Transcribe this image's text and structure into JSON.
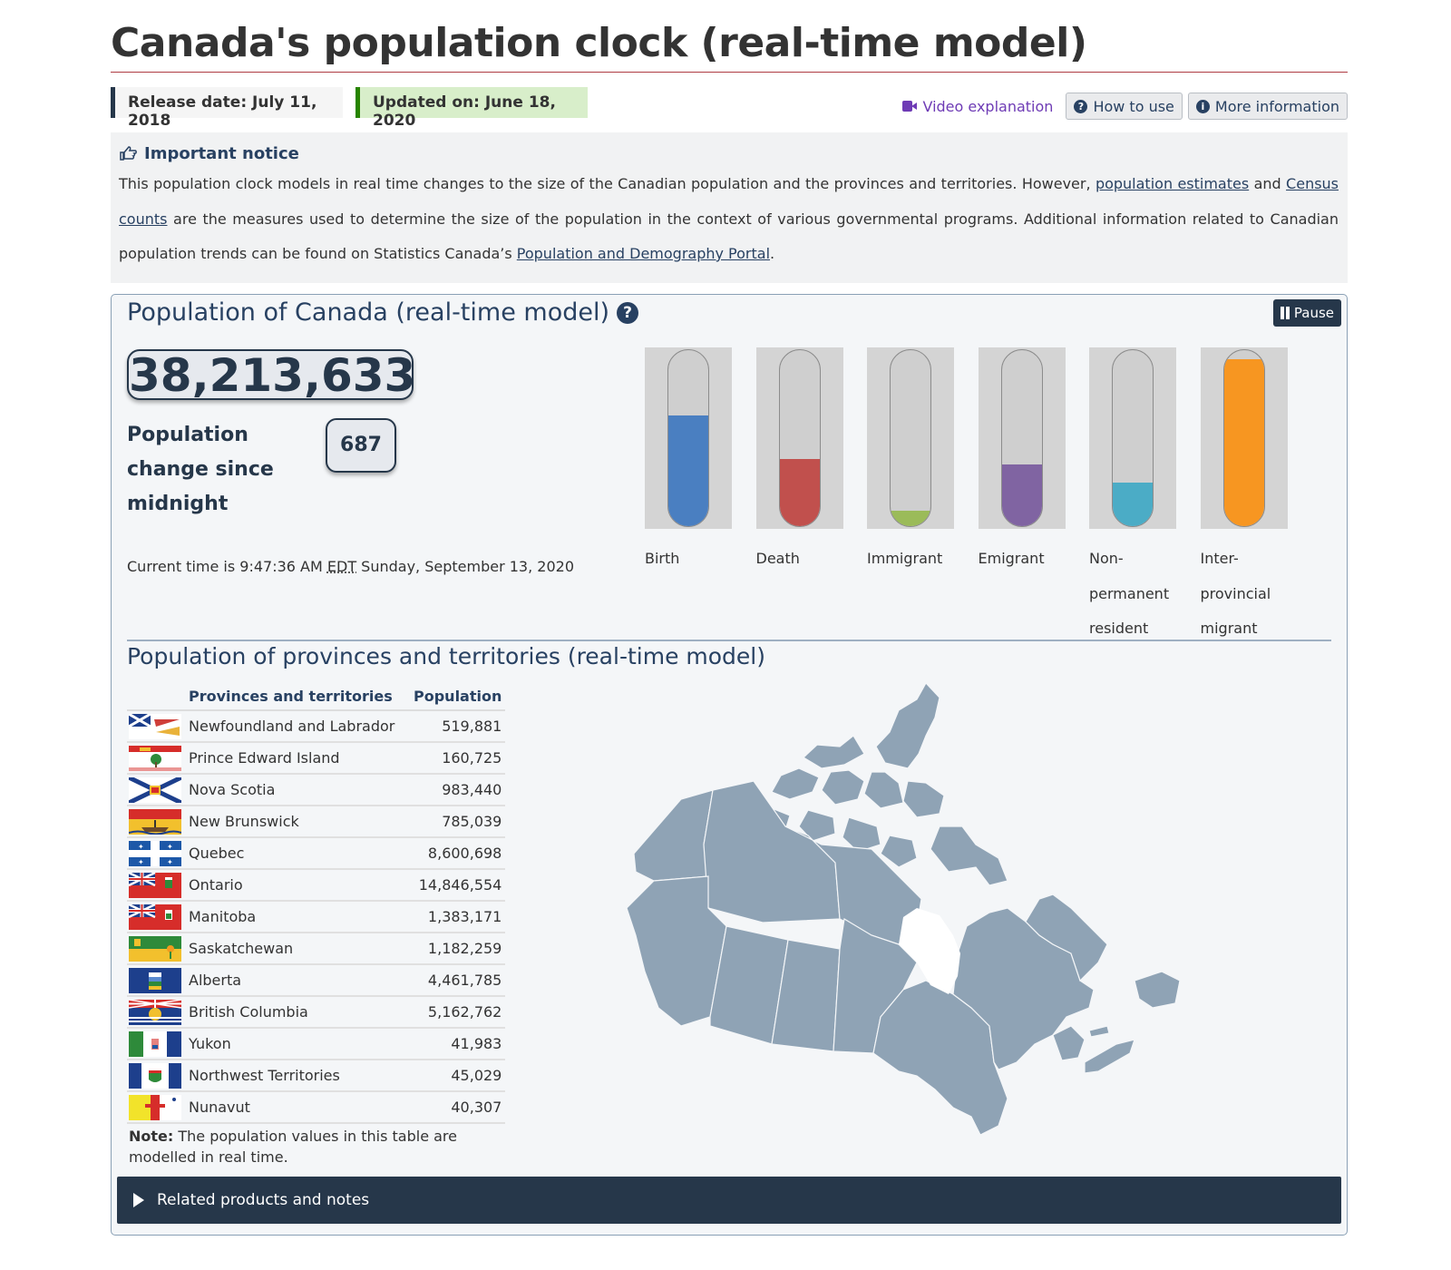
{
  "page": {
    "title": "Canada's population clock (real-time model)",
    "release_date": "Release date: July 11, 2018",
    "updated_on": "Updated on: June 18, 2020"
  },
  "tools": {
    "video_label": "Video explanation",
    "how_label": "How to use",
    "more_label": "More information"
  },
  "notice": {
    "title": "Important notice",
    "text_1": "This population clock models in real time changes to the size of the Canadian population and the provinces and territories. However, ",
    "link_1": "population estimates",
    "text_2": " and ",
    "link_2": "Census counts",
    "text_3": " are the measures used to determine the size of the population in the context of various governmental programs. Additional information related to Canadian population trends can be found on Statistics Canada’s ",
    "link_3": "Population and Demography Portal",
    "text_4": "."
  },
  "clock": {
    "title": "Population of Canada (real-time model)",
    "help_icon": "question-circle-icon",
    "pause_label": "Pause",
    "population": "38,213,633",
    "change_label": "Population change since midnight",
    "change_value": "687",
    "time_prefix": "Current time is 9:47:36 AM ",
    "time_zone": "EDT",
    "time_suffix": " Sunday, September 13, 2020"
  },
  "gauges": [
    {
      "label": "Birth",
      "level": 0.63,
      "color": "#4a7fc1"
    },
    {
      "label": "Death",
      "level": 0.38,
      "color": "#c1504d"
    },
    {
      "label": "Immigrant",
      "level": 0.09,
      "color": "#9bbb59"
    },
    {
      "label": "Emigrant",
      "level": 0.35,
      "color": "#8064a2"
    },
    {
      "label": "Non-permanent resident",
      "level": 0.25,
      "color": "#4bacc6"
    },
    {
      "label": "Inter-provincial migrant",
      "level": 0.95,
      "color": "#f79621"
    }
  ],
  "provinces": {
    "title": "Population of provinces and territories (real-time model)",
    "col_name": "Provinces and territories",
    "col_pop": "Population",
    "rows": [
      {
        "name": "Newfoundland and Labrador",
        "pop": "519,881",
        "flag": "nl"
      },
      {
        "name": "Prince Edward Island",
        "pop": "160,725",
        "flag": "pe"
      },
      {
        "name": "Nova Scotia",
        "pop": "983,440",
        "flag": "ns"
      },
      {
        "name": "New Brunswick",
        "pop": "785,039",
        "flag": "nb"
      },
      {
        "name": "Quebec",
        "pop": "8,600,698",
        "flag": "qc"
      },
      {
        "name": "Ontario",
        "pop": "14,846,554",
        "flag": "on"
      },
      {
        "name": "Manitoba",
        "pop": "1,383,171",
        "flag": "mb"
      },
      {
        "name": "Saskatchewan",
        "pop": "1,182,259",
        "flag": "sk"
      },
      {
        "name": "Alberta",
        "pop": "4,461,785",
        "flag": "ab"
      },
      {
        "name": "British Columbia",
        "pop": "5,162,762",
        "flag": "bc"
      },
      {
        "name": "Yukon",
        "pop": "41,983",
        "flag": "yt"
      },
      {
        "name": "Northwest Territories",
        "pop": "45,029",
        "flag": "nt"
      },
      {
        "name": "Nunavut",
        "pop": "40,307",
        "flag": "nu"
      }
    ],
    "note_bold": "Note:",
    "note_text": " The population values in this table are modelled in real time."
  },
  "related": {
    "label": "Related products and notes"
  },
  "colors": {
    "map_land": "#8fa3b5",
    "brand": "#26374a"
  }
}
